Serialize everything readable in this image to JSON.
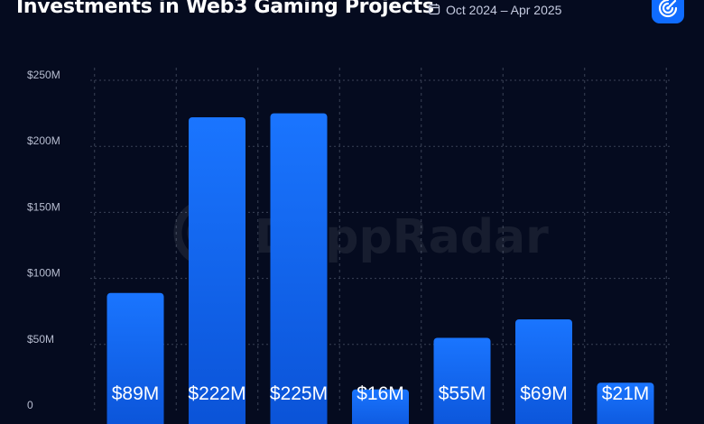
{
  "header": {
    "title": "Investments in Web3 Gaming Projects",
    "date_range": "Oct 2024 – Apr 2025",
    "calendar_icon": "calendar-icon",
    "logo_icon": "dappradar-logo-icon"
  },
  "watermark": {
    "text": "DappRadar"
  },
  "colors": {
    "background": "#050b1f",
    "bar_top": "#1a75ff",
    "bar_bottom": "#0a52d6",
    "grid": "#3a4257",
    "accent": "#0f6cff"
  },
  "chart_data": {
    "type": "bar",
    "title": "Investments in Web3 Gaming Projects",
    "categories": [
      "",
      "",
      "",
      "",
      "",
      "",
      ""
    ],
    "values": [
      89,
      222,
      225,
      16,
      55,
      69,
      21
    ],
    "value_labels": [
      "$89M",
      "$222M",
      "$225M",
      "$16M",
      "$55M",
      "$69M",
      "$21M"
    ],
    "ylim": [
      0,
      250
    ],
    "y_ticks": [
      0,
      50,
      100,
      150,
      200,
      250
    ],
    "y_tick_labels": [
      "0",
      "$50M",
      "$100M",
      "$150M",
      "$200M",
      "$250M"
    ],
    "xlabel": "",
    "ylabel": "",
    "grid": true
  }
}
